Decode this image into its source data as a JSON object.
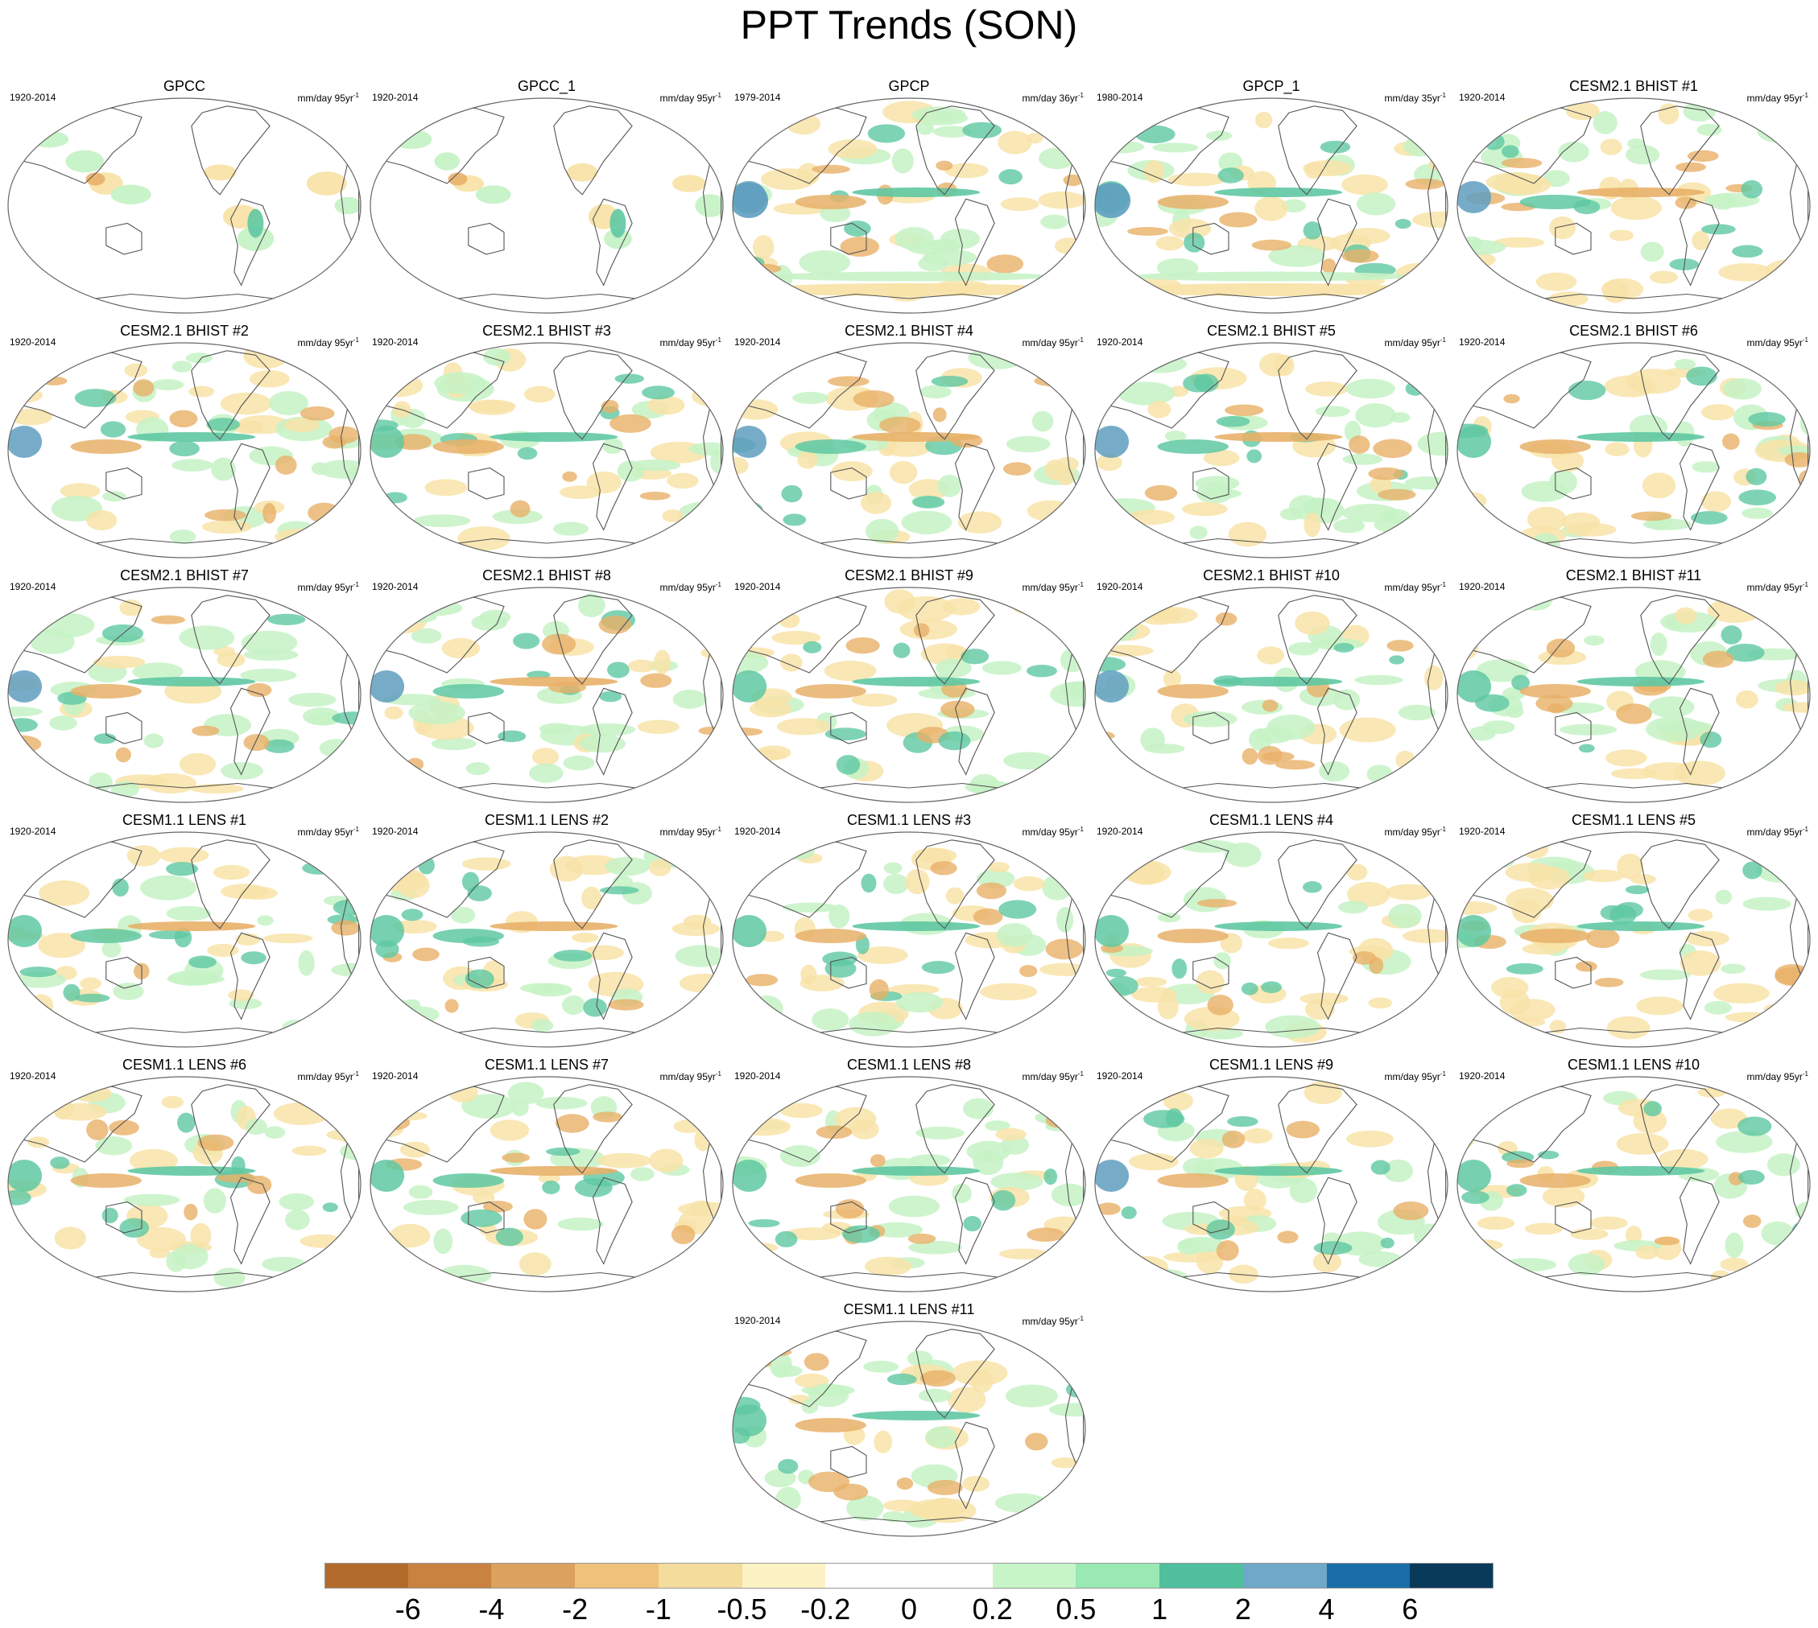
{
  "title": "PPT Trends (SON)",
  "panels": [
    {
      "name": "GPCC",
      "period": "1920-2014",
      "unit": "mm/day 95yr",
      "exp": "-1",
      "kind": "obs-land"
    },
    {
      "name": "GPCC_1",
      "period": "1920-2014",
      "unit": "mm/day 95yr",
      "exp": "-1",
      "kind": "obs-land"
    },
    {
      "name": "GPCP",
      "period": "1979-2014",
      "unit": "mm/day 36yr",
      "exp": "-1",
      "kind": "obs-global"
    },
    {
      "name": "GPCP_1",
      "period": "1980-2014",
      "unit": "mm/day 35yr",
      "exp": "-1",
      "kind": "obs-global"
    },
    {
      "name": "CESM2.1 BHIST #1",
      "period": "1920-2014",
      "unit": "mm/day 95yr",
      "exp": "-1",
      "kind": "model"
    },
    {
      "name": "CESM2.1 BHIST #2",
      "period": "1920-2014",
      "unit": "mm/day 95yr",
      "exp": "-1",
      "kind": "model"
    },
    {
      "name": "CESM2.1 BHIST #3",
      "period": "1920-2014",
      "unit": "mm/day 95yr",
      "exp": "-1",
      "kind": "model"
    },
    {
      "name": "CESM2.1 BHIST #4",
      "period": "1920-2014",
      "unit": "mm/day 95yr",
      "exp": "-1",
      "kind": "model"
    },
    {
      "name": "CESM2.1 BHIST #5",
      "period": "1920-2014",
      "unit": "mm/day 95yr",
      "exp": "-1",
      "kind": "model"
    },
    {
      "name": "CESM2.1 BHIST #6",
      "period": "1920-2014",
      "unit": "mm/day 95yr",
      "exp": "-1",
      "kind": "model"
    },
    {
      "name": "CESM2.1 BHIST #7",
      "period": "1920-2014",
      "unit": "mm/day 95yr",
      "exp": "-1",
      "kind": "model"
    },
    {
      "name": "CESM2.1 BHIST #8",
      "period": "1920-2014",
      "unit": "mm/day 95yr",
      "exp": "-1",
      "kind": "model"
    },
    {
      "name": "CESM2.1 BHIST #9",
      "period": "1920-2014",
      "unit": "mm/day 95yr",
      "exp": "-1",
      "kind": "model"
    },
    {
      "name": "CESM2.1 BHIST #10",
      "period": "1920-2014",
      "unit": "mm/day 95yr",
      "exp": "-1",
      "kind": "model"
    },
    {
      "name": "CESM2.1 BHIST #11",
      "period": "1920-2014",
      "unit": "mm/day 95yr",
      "exp": "-1",
      "kind": "model"
    },
    {
      "name": "CESM1.1 LENS #1",
      "period": "1920-2014",
      "unit": "mm/day 95yr",
      "exp": "-1",
      "kind": "model"
    },
    {
      "name": "CESM1.1 LENS #2",
      "period": "1920-2014",
      "unit": "mm/day 95yr",
      "exp": "-1",
      "kind": "model"
    },
    {
      "name": "CESM1.1 LENS #3",
      "period": "1920-2014",
      "unit": "mm/day 95yr",
      "exp": "-1",
      "kind": "model"
    },
    {
      "name": "CESM1.1 LENS #4",
      "period": "1920-2014",
      "unit": "mm/day 95yr",
      "exp": "-1",
      "kind": "model"
    },
    {
      "name": "CESM1.1 LENS #5",
      "period": "1920-2014",
      "unit": "mm/day 95yr",
      "exp": "-1",
      "kind": "model"
    },
    {
      "name": "CESM1.1 LENS #6",
      "period": "1920-2014",
      "unit": "mm/day 95yr",
      "exp": "-1",
      "kind": "model"
    },
    {
      "name": "CESM1.1 LENS #7",
      "period": "1920-2014",
      "unit": "mm/day 95yr",
      "exp": "-1",
      "kind": "model"
    },
    {
      "name": "CESM1.1 LENS #8",
      "period": "1920-2014",
      "unit": "mm/day 95yr",
      "exp": "-1",
      "kind": "model"
    },
    {
      "name": "CESM1.1 LENS #9",
      "period": "1920-2014",
      "unit": "mm/day 95yr",
      "exp": "-1",
      "kind": "model"
    },
    {
      "name": "CESM1.1 LENS #10",
      "period": "1920-2014",
      "unit": "mm/day 95yr",
      "exp": "-1",
      "kind": "model"
    },
    {
      "name": "CESM1.1 LENS #11",
      "period": "1920-2014",
      "unit": "mm/day 95yr",
      "exp": "-1",
      "kind": "model"
    }
  ],
  "colorbar": {
    "colors": [
      "#b36b2b",
      "#c9823f",
      "#dba15f",
      "#efc27a",
      "#f4dc9c",
      "#fcf2c4",
      "#ffffff",
      "#ffffff",
      "#c8f5c8",
      "#9ae8b4",
      "#4fbf9e",
      "#70a8c8",
      "#1a6ea8",
      "#0a3a5a"
    ],
    "labels": [
      "-6",
      "-4",
      "-2",
      "-1",
      "-0.5",
      "-0.2",
      "0",
      "0.2",
      "0.5",
      "1",
      "2",
      "4",
      "6"
    ]
  },
  "legend_colors": {
    "coast": "#555555",
    "ellipse": "#666666",
    "dry_strong": "#d08a40",
    "dry_mid": "#e8b068",
    "dry_weak": "#f8e3a8",
    "wet_weak": "#c6f2c6",
    "wet_mid": "#5fc8a2",
    "wet_strong": "#5f9ec0"
  }
}
